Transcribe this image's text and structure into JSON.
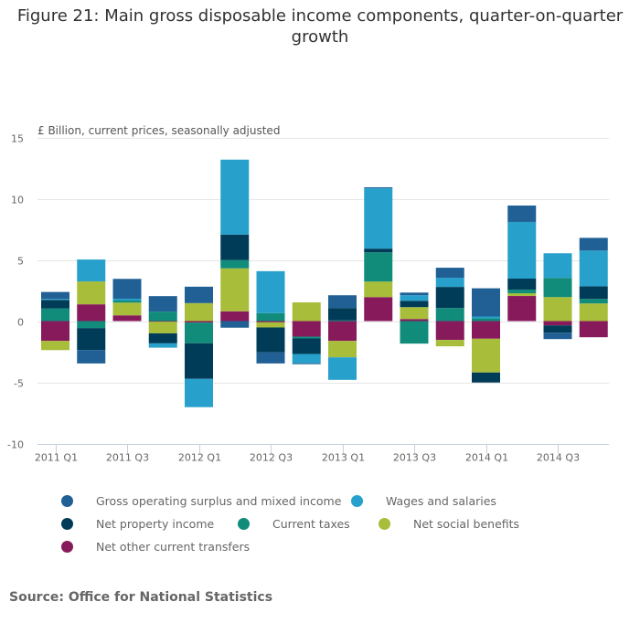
{
  "title_lines": [
    "Figure 21: Main gross disposable income components, quarter-on-quarter",
    "growth"
  ],
  "source": "Source: Office for National Statistics",
  "chart_data": {
    "type": "bar",
    "stacked": true,
    "title": "Figure 21: Main gross disposable income components, quarter-on-quarter growth",
    "ylabel": "£ Billion, current prices, seasonally adjusted",
    "xlabel": "",
    "ylim": [
      -10,
      15
    ],
    "yticks": [
      15,
      10,
      5,
      0,
      -5,
      -10
    ],
    "grid": true,
    "legend_position": "bottom",
    "categories": [
      "2011 Q1",
      "2011 Q2",
      "2011 Q3",
      "2011 Q4",
      "2012 Q1",
      "2012 Q2",
      "2012 Q3",
      "2012 Q4",
      "2013 Q1",
      "2013 Q2",
      "2013 Q3",
      "2013 Q4",
      "2014 Q1",
      "2014 Q2",
      "2014 Q3",
      "2014 Q4"
    ],
    "xtick_labels": [
      "2011 Q1",
      "2011 Q3",
      "2012 Q1",
      "2012 Q3",
      "2013 Q1",
      "2013 Q3",
      "2014 Q1",
      "2014 Q3"
    ],
    "stack_order": [
      "Net other current transfers",
      "Net social benefits",
      "Current taxes",
      "Net property income",
      "Wages and salaries",
      "Gross operating surplus and mixed income"
    ],
    "series": [
      {
        "name": "Gross operating surplus and mixed income",
        "color": "#206095",
        "values": [
          0.57,
          -1.1,
          1.62,
          1.27,
          1.34,
          -0.54,
          -0.9,
          -0.08,
          1.04,
          0.08,
          0.22,
          0.82,
          2.31,
          1.34,
          -0.52,
          1.04
        ]
      },
      {
        "name": "Wages and salaries",
        "color": "#27a0cc",
        "values": [
          0.08,
          1.79,
          0.15,
          -0.35,
          -2.31,
          6.12,
          3.43,
          -0.75,
          -1.84,
          4.93,
          0.45,
          0.75,
          0.15,
          4.63,
          2.01,
          2.91
        ]
      },
      {
        "name": "Net property income",
        "color": "#003c57",
        "values": [
          0.69,
          -1.79,
          0.0,
          -0.82,
          -2.91,
          2.09,
          -2.04,
          -1.27,
          1.02,
          0.3,
          0.52,
          1.72,
          -0.82,
          0.9,
          -0.6,
          1.04
        ]
      },
      {
        "name": "Current taxes",
        "color": "#118c7b",
        "values": [
          1.04,
          -0.57,
          0.17,
          0.77,
          -1.69,
          0.67,
          0.65,
          -0.15,
          0.05,
          2.39,
          -1.84,
          1.07,
          0.22,
          0.3,
          1.57,
          0.37
        ]
      },
      {
        "name": "Net social benefits",
        "color": "#a8bd3a",
        "values": [
          -0.75,
          1.87,
          1.04,
          -0.95,
          1.47,
          3.51,
          -0.42,
          1.53,
          -1.34,
          1.27,
          0.97,
          -0.52,
          -2.76,
          0.22,
          1.96,
          1.44
        ]
      },
      {
        "name": "Net other current transfers",
        "color": "#871a5b",
        "values": [
          -1.62,
          1.37,
          0.47,
          -0.05,
          -0.12,
          0.8,
          -0.1,
          -1.27,
          -1.62,
          1.96,
          0.17,
          -1.54,
          -1.44,
          2.05,
          -0.35,
          -1.32
        ]
      }
    ]
  },
  "legend": {
    "rows": [
      [
        {
          "label": "Gross operating surplus and mixed income",
          "series": 0
        },
        {
          "label": "Wages and salaries",
          "series": 1
        }
      ],
      [
        {
          "label": "Net property income",
          "series": 2
        },
        {
          "label": "Current taxes",
          "series": 3
        },
        {
          "label": "Net social benefits",
          "series": 4
        }
      ],
      [
        {
          "label": "Net other current transfers",
          "series": 5
        }
      ]
    ]
  }
}
